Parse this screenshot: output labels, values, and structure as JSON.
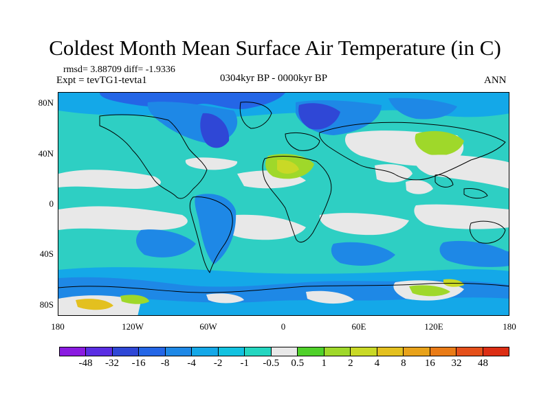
{
  "title": "Coldest Month Mean Surface Air Temperature (in C)",
  "stats_line": "rmsd= 3.88709 diff= -1.9336",
  "experiment_line": "Expt = tevTG1-tevta1",
  "period_line": "0304kyr BP - 0000kyr BP",
  "season_label": "ANN",
  "lat_labels": [
    "80N",
    "40N",
    "0",
    "40S",
    "80S"
  ],
  "lon_labels": [
    "180",
    "120W",
    "60W",
    "0",
    "60E",
    "120E",
    "180"
  ],
  "colorbar": {
    "labels": [
      "-48",
      "-32",
      "-16",
      "-8",
      "-4",
      "-2",
      "-1",
      "-0.5",
      "0.5",
      "1",
      "2",
      "4",
      "8",
      "16",
      "32",
      "48"
    ],
    "colors": [
      "#8a1be0",
      "#5a2ee3",
      "#2f47d6",
      "#2466e6",
      "#1e88e6",
      "#14a8e8",
      "#12c2e0",
      "#24d6c0",
      "#e8e8e8",
      "#4fd12a",
      "#9fd82a",
      "#c9d926",
      "#e3c01f",
      "#e8a21a",
      "#e97b16",
      "#e5501a",
      "#dc2e14"
    ]
  }
}
